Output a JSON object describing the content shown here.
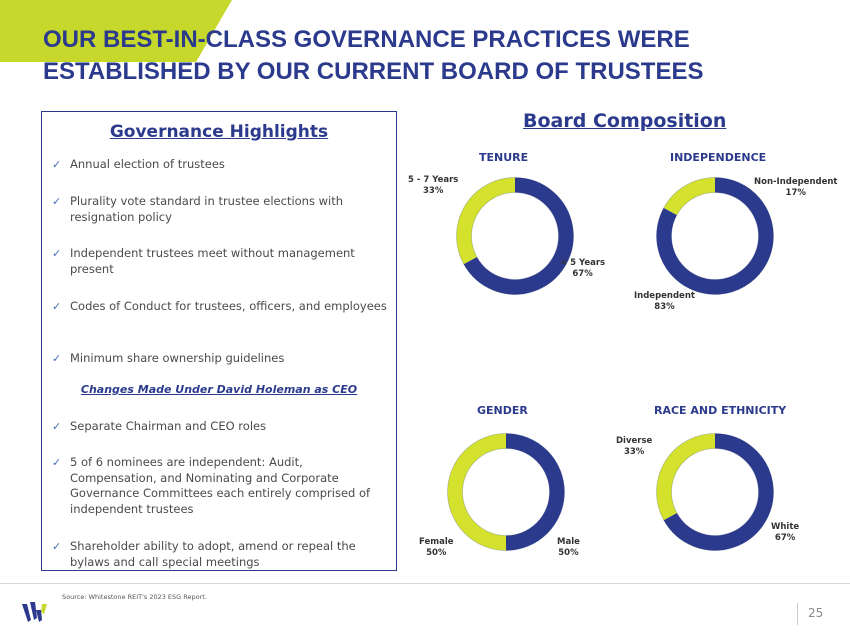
{
  "header": {
    "title_line1": "OUR BEST-IN-CLASS GOVERNANCE PRACTICES WERE",
    "title_line2": "ESTABLISHED BY OUR CURRENT BOARD OF TRUSTEES"
  },
  "highlights": {
    "title": "Governance Highlights",
    "check_glyph": "✓",
    "items": [
      "Annual election of trustees",
      "Plurality vote standard in trustee elections with resignation policy",
      "Independent trustees meet without management present",
      "Codes of Conduct for trustees, officers, and employees",
      "Minimum share ownership guidelines"
    ],
    "subhead": "Changes Made Under David Holeman as CEO",
    "changes": [
      "Separate Chairman and CEO roles",
      "5 of 6 nominees are independent: Audit, Compensation, and Nominating and Corporate Governance Committees each entirely comprised of independent trustees",
      "Shareholder ability to adopt, amend or repeal the bylaws and call special meetings"
    ]
  },
  "board": {
    "title": "Board Composition"
  },
  "colors": {
    "navy": "#2b3a8c",
    "lime": "#d4e22e",
    "accent": "#c5d82b"
  },
  "chart_data": [
    {
      "type": "pie",
      "title": "TENURE",
      "slices": [
        {
          "label": "< 5 Years",
          "pct_label": "67%",
          "value": 67
        },
        {
          "label": "5 - 7 Years",
          "pct_label": "33%",
          "value": 33
        }
      ]
    },
    {
      "type": "pie",
      "title": "INDEPENDENCE",
      "slices": [
        {
          "label": "Independent",
          "pct_label": "83%",
          "value": 83
        },
        {
          "label": "Non-Independent",
          "pct_label": "17%",
          "value": 17
        }
      ]
    },
    {
      "type": "pie",
      "title": "GENDER",
      "slices": [
        {
          "label": "Male",
          "pct_label": "50%",
          "value": 50
        },
        {
          "label": "Female",
          "pct_label": "50%",
          "value": 50
        }
      ]
    },
    {
      "type": "pie",
      "title": "RACE AND ETHNICITY",
      "slices": [
        {
          "label": "White",
          "pct_label": "67%",
          "value": 67
        },
        {
          "label": "Diverse",
          "pct_label": "33%",
          "value": 33
        }
      ]
    }
  ],
  "footer": {
    "source": "Source: Whitestone REIT's 2023 ESG Report.",
    "page_number": "25"
  }
}
